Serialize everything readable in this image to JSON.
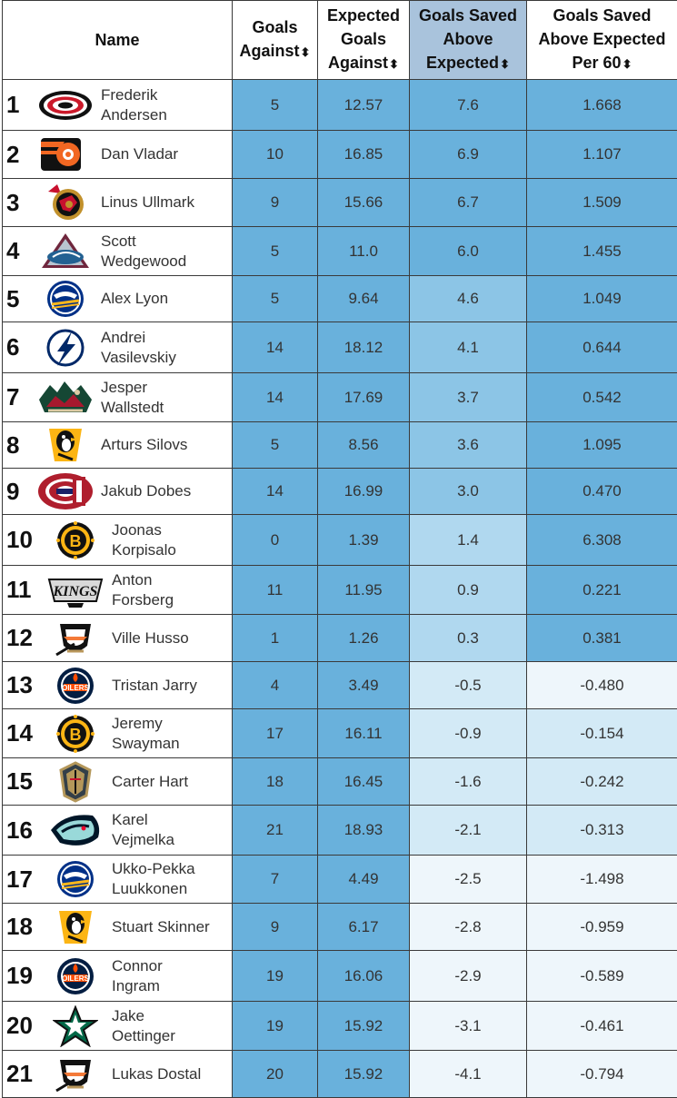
{
  "header": {
    "name": "Name",
    "ga": [
      "Goals",
      "Against"
    ],
    "xga": [
      "Expected",
      "Goals",
      "Against"
    ],
    "gsax": [
      "Goals Saved",
      "Above",
      "Expected"
    ],
    "gsax60": [
      "Goals Saved",
      "Above Expected",
      "Per 60"
    ]
  },
  "colors": {
    "dark": "#69b1dc",
    "mid": "#8cc5e6",
    "light": "#b0d8ef",
    "pale": "#d3eaf6",
    "faint": "#eef6fb",
    "sorted_header": "#a9c3dc"
  },
  "rows": [
    {
      "rank": "1",
      "team": "hurricanes",
      "name": [
        "Frederik",
        "Andersen"
      ],
      "ga": "5",
      "xga": "12.57",
      "gsax": "7.6",
      "gsax60": "1.668",
      "shade": [
        "dark",
        "dark",
        "dark",
        "dark"
      ]
    },
    {
      "rank": "2",
      "team": "flyers",
      "name": [
        "Dan Vladar"
      ],
      "ga": "10",
      "xga": "16.85",
      "gsax": "6.9",
      "gsax60": "1.107",
      "shade": [
        "dark",
        "dark",
        "dark",
        "dark"
      ]
    },
    {
      "rank": "3",
      "team": "senators",
      "name": [
        "Linus Ullmark"
      ],
      "ga": "9",
      "xga": "15.66",
      "gsax": "6.7",
      "gsax60": "1.509",
      "shade": [
        "dark",
        "dark",
        "dark",
        "dark"
      ]
    },
    {
      "rank": "4",
      "team": "avalanche",
      "name": [
        "Scott",
        "Wedgewood"
      ],
      "ga": "5",
      "xga": "11.0",
      "gsax": "6.0",
      "gsax60": "1.455",
      "shade": [
        "dark",
        "dark",
        "dark",
        "dark"
      ]
    },
    {
      "rank": "5",
      "team": "sabres",
      "name": [
        "Alex Lyon"
      ],
      "ga": "5",
      "xga": "9.64",
      "gsax": "4.6",
      "gsax60": "1.049",
      "shade": [
        "dark",
        "dark",
        "mid",
        "dark"
      ]
    },
    {
      "rank": "6",
      "team": "lightning",
      "name": [
        "Andrei",
        "Vasilevskiy"
      ],
      "ga": "14",
      "xga": "18.12",
      "gsax": "4.1",
      "gsax60": "0.644",
      "shade": [
        "dark",
        "dark",
        "mid",
        "dark"
      ]
    },
    {
      "rank": "7",
      "team": "wild",
      "name": [
        "Jesper",
        "Wallstedt"
      ],
      "ga": "14",
      "xga": "17.69",
      "gsax": "3.7",
      "gsax60": "0.542",
      "shade": [
        "dark",
        "dark",
        "mid",
        "dark"
      ]
    },
    {
      "rank": "8",
      "team": "penguins",
      "name": [
        "Arturs Silovs"
      ],
      "ga": "5",
      "xga": "8.56",
      "gsax": "3.6",
      "gsax60": "1.095",
      "shade": [
        "dark",
        "dark",
        "mid",
        "dark"
      ]
    },
    {
      "rank": "9",
      "team": "canadiens",
      "name": [
        "Jakub Dobes"
      ],
      "ga": "14",
      "xga": "16.99",
      "gsax": "3.0",
      "gsax60": "0.470",
      "shade": [
        "dark",
        "dark",
        "mid",
        "dark"
      ]
    },
    {
      "rank": "10",
      "team": "bruins",
      "name": [
        "Joonas",
        "Korpisalo"
      ],
      "ga": "0",
      "xga": "1.39",
      "gsax": "1.4",
      "gsax60": "6.308",
      "shade": [
        "dark",
        "dark",
        "light",
        "dark"
      ]
    },
    {
      "rank": "11",
      "team": "kings",
      "name": [
        "Anton",
        "Forsberg"
      ],
      "ga": "11",
      "xga": "11.95",
      "gsax": "0.9",
      "gsax60": "0.221",
      "shade": [
        "dark",
        "dark",
        "light",
        "dark"
      ]
    },
    {
      "rank": "12",
      "team": "ducks",
      "name": [
        "Ville Husso"
      ],
      "ga": "1",
      "xga": "1.26",
      "gsax": "0.3",
      "gsax60": "0.381",
      "shade": [
        "dark",
        "dark",
        "light",
        "dark"
      ]
    },
    {
      "rank": "13",
      "team": "oilers",
      "name": [
        "Tristan Jarry"
      ],
      "ga": "4",
      "xga": "3.49",
      "gsax": "-0.5",
      "gsax60": "-0.480",
      "shade": [
        "dark",
        "dark",
        "pale",
        "faint"
      ]
    },
    {
      "rank": "14",
      "team": "bruins",
      "name": [
        "Jeremy",
        "Swayman"
      ],
      "ga": "17",
      "xga": "16.11",
      "gsax": "-0.9",
      "gsax60": "-0.154",
      "shade": [
        "dark",
        "dark",
        "pale",
        "pale"
      ]
    },
    {
      "rank": "15",
      "team": "goldenknights",
      "name": [
        "Carter Hart"
      ],
      "ga": "18",
      "xga": "16.45",
      "gsax": "-1.6",
      "gsax60": "-0.242",
      "shade": [
        "dark",
        "dark",
        "pale",
        "pale"
      ]
    },
    {
      "rank": "16",
      "team": "kraken",
      "name": [
        "Karel",
        "Vejmelka"
      ],
      "ga": "21",
      "xga": "18.93",
      "gsax": "-2.1",
      "gsax60": "-0.313",
      "shade": [
        "dark",
        "dark",
        "pale",
        "pale"
      ]
    },
    {
      "rank": "17",
      "team": "sabres",
      "name": [
        "Ukko-Pekka",
        "Luukkonen"
      ],
      "ga": "7",
      "xga": "4.49",
      "gsax": "-2.5",
      "gsax60": "-1.498",
      "shade": [
        "dark",
        "dark",
        "faint",
        "faint"
      ]
    },
    {
      "rank": "18",
      "team": "penguins",
      "name": [
        "Stuart Skinner"
      ],
      "ga": "9",
      "xga": "6.17",
      "gsax": "-2.8",
      "gsax60": "-0.959",
      "shade": [
        "dark",
        "dark",
        "faint",
        "faint"
      ]
    },
    {
      "rank": "19",
      "team": "oilers",
      "name": [
        "Connor",
        "Ingram"
      ],
      "ga": "19",
      "xga": "16.06",
      "gsax": "-2.9",
      "gsax60": "-0.589",
      "shade": [
        "dark",
        "dark",
        "faint",
        "faint"
      ]
    },
    {
      "rank": "20",
      "team": "stars",
      "name": [
        "Jake",
        "Oettinger"
      ],
      "ga": "19",
      "xga": "15.92",
      "gsax": "-3.1",
      "gsax60": "-0.461",
      "shade": [
        "dark",
        "dark",
        "faint",
        "faint"
      ]
    },
    {
      "rank": "21",
      "team": "ducks",
      "name": [
        "Lukas Dostal"
      ],
      "ga": "20",
      "xga": "15.92",
      "gsax": "-4.1",
      "gsax60": "-0.794",
      "shade": [
        "dark",
        "dark",
        "faint",
        "faint"
      ]
    }
  ]
}
